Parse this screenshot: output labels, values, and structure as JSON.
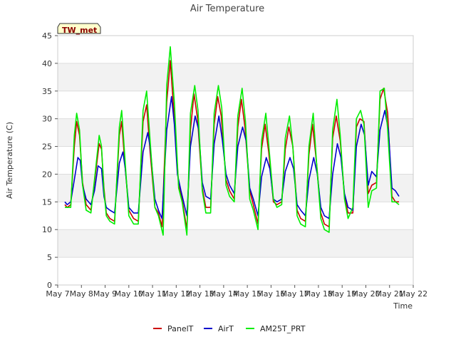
{
  "chart_data": {
    "type": "line",
    "title": "Air Temperature",
    "xlabel": "Time",
    "ylabel": "Air Temperature (C)",
    "station_label": "TW_met",
    "ylim": [
      0,
      45
    ],
    "yticks": [
      0,
      5,
      10,
      15,
      20,
      25,
      30,
      35,
      40,
      45
    ],
    "xlim": [
      0,
      15
    ],
    "xtick_labels": [
      "May 7",
      "May 8",
      "May 9",
      "May 10",
      "May 11",
      "May 12",
      "May 13",
      "May 14",
      "May 15",
      "May 16",
      "May 17",
      "May 18",
      "May 19",
      "May 20",
      "May 21",
      "May 22"
    ],
    "grid": "horizontal bands",
    "legend_position": "bottom-center",
    "series": [
      {
        "name": "PanelT",
        "color": "#cc0000",
        "x": [
          0.3,
          0.4,
          0.55,
          0.7,
          0.8,
          0.92,
          1.05,
          1.2,
          1.4,
          1.55,
          1.75,
          1.85,
          1.95,
          2.05,
          2.2,
          2.4,
          2.6,
          2.7,
          2.85,
          3.0,
          3.2,
          3.4,
          3.6,
          3.75,
          3.9,
          4.1,
          4.25,
          4.4,
          4.6,
          4.75,
          4.92,
          5.1,
          5.25,
          5.45,
          5.6,
          5.75,
          5.9,
          6.1,
          6.25,
          6.45,
          6.6,
          6.75,
          6.9,
          7.1,
          7.25,
          7.45,
          7.6,
          7.75,
          7.9,
          8.1,
          8.25,
          8.45,
          8.6,
          8.75,
          8.9,
          9.1,
          9.25,
          9.45,
          9.6,
          9.75,
          9.92,
          10.1,
          10.25,
          10.45,
          10.6,
          10.75,
          10.92,
          11.1,
          11.25,
          11.45,
          11.6,
          11.75,
          11.92,
          12.1,
          12.25,
          12.45,
          12.6,
          12.75,
          12.92,
          13.1,
          13.25,
          13.45,
          13.6,
          13.75,
          13.92,
          14.1,
          14.25,
          14.4
        ],
        "y": [
          14.5,
          14.0,
          14.5,
          25.0,
          29.5,
          27.0,
          18.5,
          14.5,
          13.5,
          18.5,
          25.5,
          24.5,
          17.5,
          13.0,
          12.0,
          11.5,
          27.0,
          29.5,
          21.0,
          13.5,
          12.0,
          11.5,
          29.5,
          32.5,
          24.0,
          14.0,
          13.0,
          10.5,
          33.0,
          40.5,
          30.0,
          18.0,
          15.5,
          10.0,
          28.0,
          34.5,
          30.0,
          17.5,
          14.0,
          14.0,
          29.0,
          34.0,
          30.5,
          19.0,
          17.0,
          15.5,
          28.5,
          33.5,
          28.5,
          17.0,
          14.5,
          11.0,
          24.5,
          29.0,
          24.0,
          15.0,
          14.5,
          15.0,
          24.5,
          28.5,
          25.0,
          13.5,
          12.0,
          11.5,
          23.5,
          29.0,
          22.0,
          13.0,
          11.0,
          10.5,
          26.5,
          30.5,
          26.0,
          16.0,
          13.0,
          13.0,
          28.5,
          30.0,
          29.5,
          16.5,
          18.0,
          18.5,
          33.5,
          35.5,
          31.0,
          16.0,
          15.0,
          15.0
        ]
      },
      {
        "name": "AirT",
        "color": "#0000cc",
        "x": [
          0.3,
          0.4,
          0.55,
          0.7,
          0.85,
          0.95,
          1.05,
          1.2,
          1.4,
          1.55,
          1.7,
          1.85,
          1.95,
          2.05,
          2.2,
          2.4,
          2.6,
          2.75,
          2.85,
          3.0,
          3.2,
          3.4,
          3.6,
          3.8,
          3.9,
          4.1,
          4.25,
          4.4,
          4.6,
          4.8,
          4.92,
          5.05,
          5.2,
          5.45,
          5.6,
          5.8,
          5.95,
          6.1,
          6.25,
          6.45,
          6.6,
          6.8,
          6.95,
          7.1,
          7.25,
          7.45,
          7.6,
          7.8,
          7.95,
          8.1,
          8.25,
          8.45,
          8.6,
          8.8,
          8.95,
          9.1,
          9.25,
          9.45,
          9.6,
          9.8,
          9.95,
          10.1,
          10.25,
          10.45,
          10.6,
          10.8,
          10.95,
          11.1,
          11.25,
          11.45,
          11.6,
          11.8,
          11.95,
          12.1,
          12.25,
          12.45,
          12.6,
          12.8,
          12.95,
          13.1,
          13.25,
          13.45,
          13.6,
          13.8,
          13.95,
          14.1,
          14.25,
          14.4
        ],
        "y": [
          15.0,
          14.5,
          15.0,
          19.0,
          23.0,
          22.5,
          18.0,
          15.5,
          14.5,
          17.0,
          21.5,
          21.0,
          16.0,
          14.0,
          13.5,
          13.0,
          22.0,
          24.0,
          21.0,
          14.0,
          13.0,
          13.0,
          24.0,
          27.5,
          25.0,
          15.5,
          13.5,
          12.0,
          28.0,
          34.0,
          29.0,
          20.0,
          17.0,
          12.5,
          25.0,
          30.5,
          28.0,
          18.5,
          16.0,
          15.5,
          25.5,
          30.5,
          26.0,
          20.0,
          18.0,
          16.5,
          25.0,
          28.5,
          26.0,
          17.5,
          15.5,
          12.5,
          19.5,
          23.0,
          21.0,
          15.5,
          15.0,
          15.5,
          20.5,
          23.0,
          21.0,
          14.5,
          13.5,
          12.5,
          19.0,
          23.0,
          20.0,
          14.0,
          12.5,
          12.0,
          20.0,
          25.5,
          23.0,
          16.5,
          14.0,
          13.5,
          25.0,
          29.0,
          27.0,
          18.0,
          20.5,
          19.5,
          28.0,
          31.5,
          28.0,
          17.5,
          17.0,
          16.0
        ]
      },
      {
        "name": "AM25T_PRT",
        "color": "#00ee00",
        "x": [
          0.3,
          0.4,
          0.55,
          0.7,
          0.8,
          0.92,
          1.05,
          1.2,
          1.4,
          1.55,
          1.75,
          1.85,
          1.95,
          2.05,
          2.2,
          2.4,
          2.6,
          2.7,
          2.85,
          3.0,
          3.2,
          3.4,
          3.6,
          3.75,
          3.9,
          4.1,
          4.25,
          4.45,
          4.6,
          4.75,
          4.92,
          5.1,
          5.25,
          5.45,
          5.6,
          5.78,
          5.92,
          6.1,
          6.25,
          6.45,
          6.6,
          6.78,
          6.92,
          7.1,
          7.25,
          7.45,
          7.6,
          7.78,
          7.92,
          8.1,
          8.25,
          8.45,
          8.6,
          8.78,
          8.92,
          9.1,
          9.25,
          9.45,
          9.6,
          9.78,
          9.92,
          10.1,
          10.25,
          10.45,
          10.6,
          10.78,
          10.92,
          11.1,
          11.25,
          11.45,
          11.6,
          11.78,
          11.92,
          12.1,
          12.25,
          12.45,
          12.6,
          12.78,
          12.92,
          13.1,
          13.25,
          13.45,
          13.6,
          13.78,
          13.92,
          14.1,
          14.25,
          14.4
        ],
        "y": [
          14.0,
          14.0,
          14.0,
          27.0,
          31.0,
          28.0,
          18.0,
          13.5,
          13.0,
          19.0,
          27.0,
          25.0,
          17.0,
          12.5,
          11.5,
          11.0,
          28.5,
          31.5,
          22.0,
          12.5,
          11.0,
          11.0,
          31.5,
          35.0,
          26.0,
          14.0,
          12.5,
          9.0,
          36.0,
          43.0,
          33.0,
          17.5,
          15.0,
          9.0,
          31.0,
          36.0,
          31.5,
          17.0,
          13.0,
          13.0,
          31.0,
          36.0,
          32.0,
          18.0,
          16.0,
          15.0,
          30.5,
          35.5,
          29.5,
          15.5,
          13.5,
          10.0,
          26.0,
          31.0,
          24.5,
          15.5,
          14.0,
          14.5,
          26.5,
          30.5,
          25.0,
          12.5,
          11.0,
          10.5,
          25.0,
          31.0,
          22.0,
          12.0,
          10.0,
          9.5,
          28.0,
          33.5,
          27.0,
          15.5,
          12.0,
          14.0,
          30.0,
          31.5,
          29.0,
          14.0,
          17.0,
          17.5,
          35.0,
          35.5,
          28.0,
          15.0,
          15.0,
          14.5
        ]
      }
    ]
  }
}
